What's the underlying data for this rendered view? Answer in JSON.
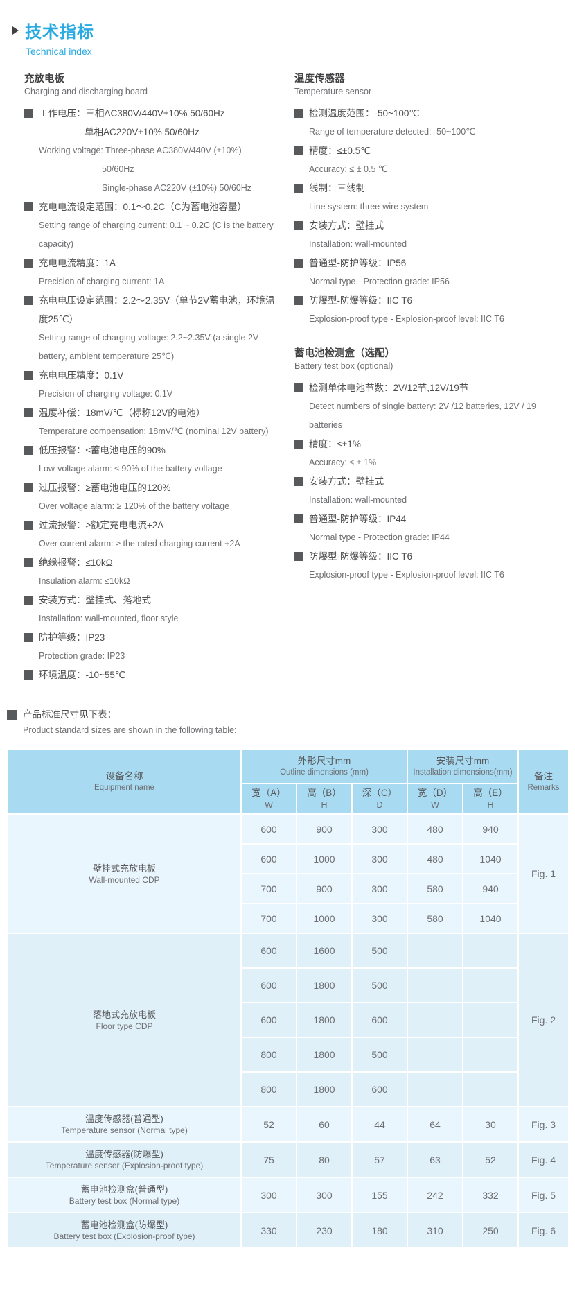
{
  "colors": {
    "accent_blue": "#29abe2",
    "table_header_bg": "#a8daf2",
    "row_light": "#eaf6fd",
    "row_dark": "#dff0f9",
    "bullet_gray": "#58595b"
  },
  "header": {
    "title_cn": "技术指标",
    "title_en": "Technical index"
  },
  "sections": [
    {
      "id": "charging-board",
      "column": "left",
      "heading_cn": "充放电板",
      "heading_en": "Charging and discharging board",
      "items": [
        {
          "cn": [
            "工作电压：三相AC380V/440V±10%  50/60Hz",
            "单相AC220V±10%  50/60Hz"
          ],
          "en": [
            "Working voltage: Three-phase AC380V/440V (±10%)",
            "50/60Hz",
            "Single-phase AC220V (±10%) 50/60Hz"
          ]
        },
        {
          "cn": [
            "充电电流设定范围：0.1～0.2C（C为蓄电池容量）"
          ],
          "en": [
            "Setting range of charging current: 0.1 ~ 0.2C (C is the battery capacity)"
          ]
        },
        {
          "cn": [
            "充电电流精度：1A"
          ],
          "en": [
            "Precision of charging current: 1A"
          ]
        },
        {
          "cn": [
            "充电电压设定范围：2.2～2.35V（单节2V蓄电池，环境温度25℃）"
          ],
          "en": [
            "Setting range of charging voltage: 2.2~2.35V (a single 2V battery, ambient temperature 25℃)"
          ]
        },
        {
          "cn": [
            "充电电压精度：0.1V"
          ],
          "en": [
            "Precision of charging voltage: 0.1V"
          ]
        },
        {
          "cn": [
            "温度补偿：18mV/℃（标称12V的电池）"
          ],
          "en": [
            "Temperature compensation: 18mV/℃ (nominal 12V battery)"
          ]
        },
        {
          "cn": [
            "低压报警：≤蓄电池电压的90%"
          ],
          "en": [
            "Low-voltage alarm: ≤ 90% of the battery voltage"
          ]
        },
        {
          "cn": [
            "过压报警：≥蓄电池电压的120%"
          ],
          "en": [
            "Over voltage alarm: ≥ 120% of the battery voltage"
          ]
        },
        {
          "cn": [
            "过流报警：≥额定充电电流+2A"
          ],
          "en": [
            "Over current alarm: ≥ the rated charging current +2A"
          ]
        },
        {
          "cn": [
            "绝缘报警：≤10kΩ"
          ],
          "en": [
            "Insulation alarm: ≤10kΩ"
          ]
        },
        {
          "cn": [
            "安装方式：壁挂式、落地式"
          ],
          "en": [
            "Installation: wall-mounted, floor style"
          ]
        },
        {
          "cn": [
            "防护等级：IP23"
          ],
          "en": [
            "Protection grade: IP23"
          ]
        },
        {
          "cn": [
            "环境温度：-10~55℃"
          ],
          "en": []
        }
      ]
    },
    {
      "id": "temperature-sensor",
      "column": "right",
      "heading_cn": "温度传感器",
      "heading_en": "Temperature sensor",
      "items": [
        {
          "cn": [
            "检测温度范围：-50~100℃"
          ],
          "en": [
            "Range of temperature detected: -50~100℃"
          ]
        },
        {
          "cn": [
            "精度：≤±0.5℃"
          ],
          "en": [
            "Accuracy: ≤ ± 0.5 ℃"
          ]
        },
        {
          "cn": [
            "线制：三线制"
          ],
          "en": [
            "Line system: three-wire system"
          ]
        },
        {
          "cn": [
            "安装方式：壁挂式"
          ],
          "en": [
            "Installation: wall-mounted"
          ]
        },
        {
          "cn": [
            "普通型-防护等级：IP56"
          ],
          "en": [
            "Normal type - Protection grade: IP56"
          ]
        },
        {
          "cn": [
            "防爆型-防爆等级：IIC T6"
          ],
          "en": [
            "Explosion-proof type - Explosion-proof level: IIC T6"
          ]
        }
      ]
    },
    {
      "id": "battery-test-box",
      "column": "right",
      "heading_cn": "蓄电池检测盒（选配）",
      "heading_en": "Battery test box (optional)",
      "items": [
        {
          "cn": [
            "检测单体电池节数：2V/12节,12V/19节"
          ],
          "en": [
            "Detect numbers of single battery: 2V /12 batteries, 12V / 19 batteries"
          ]
        },
        {
          "cn": [
            "精度：≤±1%"
          ],
          "en": [
            "Accuracy: ≤ ± 1%"
          ]
        },
        {
          "cn": [
            "安装方式：壁挂式"
          ],
          "en": [
            "Installation: wall-mounted"
          ]
        },
        {
          "cn": [
            "普通型-防护等级：IP44"
          ],
          "en": [
            "Normal type - Protection grade: IP44"
          ]
        },
        {
          "cn": [
            "防爆型-防爆等级：IIC T6"
          ],
          "en": [
            "Explosion-proof type - Explosion-proof level: IIC T6"
          ]
        }
      ]
    }
  ],
  "note": {
    "cn": "产品标准尺寸见下表：",
    "en": "Product standard sizes are shown in the following table:"
  },
  "table": {
    "header": {
      "equipment": {
        "cn": "设备名称",
        "en": "Equipment name"
      },
      "outline": {
        "cn": "外形尺寸mm",
        "en": "Outline dimensions  (mm)"
      },
      "installation": {
        "cn": "安装尺寸mm",
        "en": "Installation dimensions(mm)"
      },
      "remarks": {
        "cn": "备注",
        "en": "Remarks"
      },
      "cols": [
        {
          "cn": "宽（A）",
          "en": "W"
        },
        {
          "cn": "高（B）",
          "en": "H"
        },
        {
          "cn": "深（C）",
          "en": "D"
        },
        {
          "cn": "宽（D）",
          "en": "W"
        },
        {
          "cn": "高（E）",
          "en": "H"
        }
      ]
    },
    "groups": [
      {
        "name_cn": "壁挂式充放电板",
        "name_en": "Wall-mounted CDP",
        "remark": "Fig. 1",
        "rows": [
          [
            "600",
            "900",
            "300",
            "480",
            "940"
          ],
          [
            "600",
            "1000",
            "300",
            "480",
            "1040"
          ],
          [
            "700",
            "900",
            "300",
            "580",
            "940"
          ],
          [
            "700",
            "1000",
            "300",
            "580",
            "1040"
          ]
        ]
      },
      {
        "name_cn": "落地式充放电板",
        "name_en": "Floor type CDP",
        "remark": "Fig. 2",
        "rows": [
          [
            "600",
            "1600",
            "500",
            "",
            ""
          ],
          [
            "600",
            "1800",
            "500",
            "",
            ""
          ],
          [
            "600",
            "1800",
            "600",
            "",
            ""
          ],
          [
            "800",
            "1800",
            "500",
            "",
            ""
          ],
          [
            "800",
            "1800",
            "600",
            "",
            ""
          ]
        ]
      },
      {
        "name_cn": "温度传感器(普通型)",
        "name_en": "Temperature sensor (Normal type)",
        "remark": "Fig. 3",
        "rows": [
          [
            "52",
            "60",
            "44",
            "64",
            "30"
          ]
        ]
      },
      {
        "name_cn": "温度传感器(防爆型)",
        "name_en": "Temperature sensor (Explosion-proof type)",
        "remark": "Fig. 4",
        "rows": [
          [
            "75",
            "80",
            "57",
            "63",
            "52"
          ]
        ]
      },
      {
        "name_cn": "蓄电池检测盒(普通型)",
        "name_en": "Battery test box (Normal type)",
        "remark": "Fig. 5",
        "rows": [
          [
            "300",
            "300",
            "155",
            "242",
            "332"
          ]
        ]
      },
      {
        "name_cn": "蓄电池检测盒(防爆型)",
        "name_en": "Battery test box (Explosion-proof type)",
        "remark": "Fig. 6",
        "rows": [
          [
            "330",
            "230",
            "180",
            "310",
            "250"
          ]
        ]
      }
    ]
  }
}
